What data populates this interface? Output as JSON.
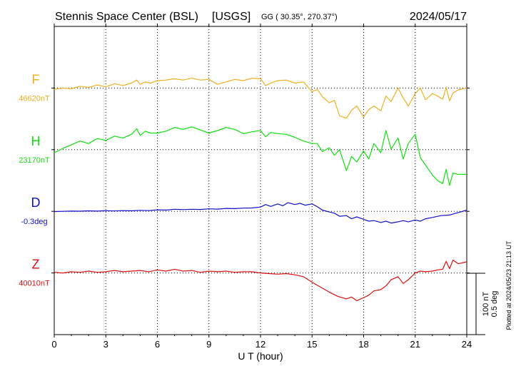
{
  "header": {
    "station": "Stennis Space Center (BSL)",
    "network": "[USGS]",
    "coords": "GG ( 30.35°, 270.37°)",
    "date": "2024/05/17"
  },
  "footer": {
    "plotted_note": "Plotted at 2024/05/23 21:13 UT"
  },
  "colors": {
    "F": "#f0b020",
    "H": "#10e010",
    "D": "#1010cc",
    "Z": "#dd1010",
    "axis": "#000000"
  },
  "chart_data": {
    "type": "line",
    "xlabel": "U T (hour)",
    "xlim": [
      0,
      24
    ],
    "xticks": [
      0,
      3,
      6,
      9,
      12,
      15,
      18,
      21,
      24
    ],
    "grid": true,
    "scale": {
      "line1": "100 nT",
      "line2": "0.5 deg",
      "nt_per_div": 100,
      "deg_per_div": 0.5
    },
    "series": [
      {
        "name": "F",
        "baseline_label": "46620nT",
        "unit": "nT",
        "baseline": 46620,
        "x": [
          0,
          0.5,
          1,
          1.5,
          2,
          2.5,
          3,
          3.5,
          4,
          4.5,
          4.8,
          5,
          5.3,
          5.6,
          6,
          6.5,
          7,
          7.5,
          8,
          8.5,
          9,
          9.5,
          10,
          10.5,
          11,
          11.5,
          12,
          12.3,
          12.6,
          13,
          13.5,
          14,
          14.5,
          15,
          15.3,
          15.6,
          16,
          16.3,
          16.6,
          17,
          17.3,
          17.6,
          18,
          18.3,
          18.6,
          19,
          19.3,
          19.6,
          20,
          20.3,
          20.6,
          21,
          21.3,
          21.6,
          22,
          22.3,
          22.6,
          22.8,
          23,
          23.2,
          23.5,
          24
        ],
        "values": [
          46618,
          46620,
          46619,
          46623,
          46621,
          46625,
          46622,
          46627,
          46624,
          46628,
          46633,
          46626,
          46630,
          46628,
          46632,
          46633,
          46635,
          46633,
          46636,
          46633,
          46634,
          46626,
          46630,
          46634,
          46632,
          46636,
          46635,
          46624,
          46628,
          46632,
          46633,
          46628,
          46630,
          46614,
          46618,
          46606,
          46596,
          46600,
          46575,
          46571,
          46584,
          46591,
          46573,
          46585,
          46591,
          46583,
          46607,
          46598,
          46620,
          46604,
          46591,
          46611,
          46620,
          46601,
          46611,
          46607,
          46602,
          46621,
          46599,
          46612,
          46617,
          46620
        ]
      },
      {
        "name": "H",
        "baseline_label": "23170nT",
        "unit": "nT",
        "baseline": 23170,
        "x": [
          0,
          0.5,
          1,
          1.5,
          2,
          2.5,
          3,
          3.5,
          4,
          4.5,
          4.8,
          5,
          5.3,
          5.6,
          6,
          6.5,
          7,
          7.5,
          8,
          8.5,
          9,
          9.5,
          10,
          10.5,
          11,
          11.5,
          12,
          12.3,
          12.6,
          13,
          13.5,
          14,
          14.5,
          15,
          15.3,
          15.6,
          16,
          16.3,
          16.6,
          17,
          17.3,
          17.6,
          18,
          18.3,
          18.6,
          19,
          19.3,
          19.6,
          20,
          20.3,
          20.6,
          21,
          21.3,
          21.6,
          22,
          22.3,
          22.6,
          22.8,
          23,
          23.2,
          23.5,
          24
        ],
        "values": [
          23165,
          23172,
          23178,
          23184,
          23180,
          23188,
          23185,
          23192,
          23189,
          23195,
          23204,
          23193,
          23200,
          23197,
          23197,
          23200,
          23206,
          23203,
          23207,
          23202,
          23197,
          23201,
          23206,
          23203,
          23196,
          23199,
          23201,
          23191,
          23198,
          23196,
          23195,
          23190,
          23184,
          23180,
          23180,
          23167,
          23173,
          23161,
          23170,
          23136,
          23159,
          23150,
          23168,
          23155,
          23180,
          23165,
          23201,
          23171,
          23189,
          23155,
          23180,
          23195,
          23157,
          23145,
          23129,
          23120,
          23115,
          23138,
          23112,
          23132,
          23130,
          23130
        ]
      },
      {
        "name": "D",
        "baseline_label": "-0.3deg",
        "unit": "deg",
        "baseline": -0.3,
        "x": [
          0,
          0.5,
          1,
          1.5,
          2,
          2.5,
          3,
          3.5,
          4,
          4.5,
          5,
          5.5,
          6,
          6.5,
          7,
          7.5,
          8,
          8.5,
          9,
          9.5,
          10,
          10.5,
          11,
          11.5,
          12,
          12.3,
          12.6,
          13,
          13.3,
          13.6,
          14,
          14.3,
          14.6,
          15,
          15.3,
          15.6,
          16,
          16.3,
          16.6,
          17,
          17.3,
          17.6,
          18,
          18.3,
          18.6,
          19,
          19.3,
          19.6,
          20,
          20.3,
          20.6,
          21,
          21.3,
          21.6,
          22,
          22.5,
          23,
          23.5,
          24
        ],
        "values": [
          -0.302,
          -0.3,
          -0.298,
          -0.299,
          -0.296,
          -0.298,
          -0.295,
          -0.297,
          -0.294,
          -0.296,
          -0.292,
          -0.294,
          -0.288,
          -0.29,
          -0.283,
          -0.286,
          -0.283,
          -0.285,
          -0.28,
          -0.282,
          -0.276,
          -0.278,
          -0.274,
          -0.273,
          -0.265,
          -0.245,
          -0.26,
          -0.24,
          -0.255,
          -0.23,
          -0.245,
          -0.235,
          -0.25,
          -0.24,
          -0.262,
          -0.29,
          -0.305,
          -0.315,
          -0.34,
          -0.335,
          -0.36,
          -0.345,
          -0.365,
          -0.38,
          -0.375,
          -0.39,
          -0.38,
          -0.395,
          -0.385,
          -0.375,
          -0.385,
          -0.37,
          -0.38,
          -0.36,
          -0.35,
          -0.335,
          -0.33,
          -0.31,
          -0.29
        ]
      },
      {
        "name": "Z",
        "baseline_label": "40010nT",
        "unit": "nT",
        "baseline": 40010,
        "x": [
          0,
          0.5,
          1,
          1.5,
          2,
          2.5,
          3,
          3.5,
          4,
          4.5,
          5,
          5.5,
          6,
          6.5,
          7,
          7.5,
          8,
          8.5,
          9,
          9.5,
          10,
          10.5,
          11,
          11.5,
          12,
          12.5,
          13,
          13.5,
          14,
          14.5,
          15,
          15.5,
          16,
          16.5,
          17,
          17.3,
          17.6,
          18,
          18.3,
          18.6,
          19,
          19.3,
          19.6,
          20,
          20.3,
          20.6,
          21,
          21.3,
          21.6,
          22,
          22.3,
          22.6,
          22.8,
          23,
          23.2,
          23.5,
          24
        ],
        "values": [
          40011,
          40010,
          40012,
          40011,
          40013,
          40011,
          40012,
          40014,
          40012,
          40013,
          40014,
          40012,
          40015,
          40013,
          40016,
          40013,
          40014,
          40011,
          40013,
          40012,
          40013,
          40011,
          40012,
          40012,
          40010,
          40009,
          40008,
          40009,
          40007,
          40004,
          39995,
          39987,
          39979,
          39972,
          39968,
          39971,
          39965,
          39970,
          39974,
          39981,
          39983,
          39989,
          39999,
          40004,
          39993,
          39999,
          40010,
          40013,
          40012,
          40013,
          40015,
          40016,
          40029,
          40017,
          40031,
          40025,
          40028
        ]
      }
    ]
  }
}
